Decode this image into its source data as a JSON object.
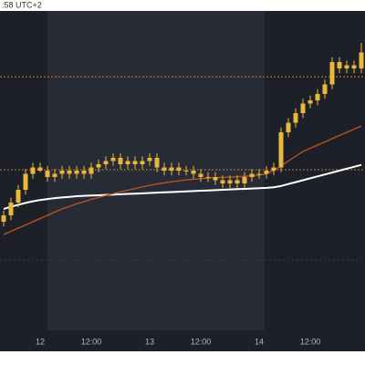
{
  "chart_data": {
    "type": "candlestick",
    "header": ":58 UTC+2",
    "categories": [
      null,
      null,
      null,
      null,
      null,
      "12",
      null,
      null,
      null,
      null,
      null,
      null,
      "12:00",
      null,
      null,
      null,
      null,
      null,
      null,
      null,
      "13",
      null,
      null,
      null,
      null,
      null,
      null,
      "12:00",
      null,
      null,
      null,
      null,
      null,
      null,
      null,
      "14",
      null,
      null,
      null,
      null,
      null,
      null,
      "12:00",
      null,
      null,
      null,
      null,
      null,
      null,
      null
    ],
    "open": [
      34,
      36,
      40,
      44,
      49,
      51,
      50,
      48,
      49,
      50,
      49,
      50,
      49,
      51,
      52,
      53,
      54,
      52,
      53,
      52,
      53,
      54,
      51,
      50,
      51,
      50,
      50,
      49,
      48,
      48,
      47,
      46,
      47,
      46,
      48,
      49,
      49,
      50,
      51,
      62,
      65,
      68,
      71,
      72,
      74,
      77,
      84,
      82,
      83,
      82
    ],
    "close": [
      36,
      40,
      44,
      49,
      51,
      50,
      48,
      49,
      50,
      49,
      50,
      49,
      51,
      52,
      53,
      54,
      52,
      53,
      52,
      53,
      54,
      51,
      50,
      51,
      50,
      50,
      49,
      48,
      48,
      47,
      46,
      47,
      46,
      48,
      49,
      49,
      50,
      51,
      62,
      65,
      68,
      71,
      72,
      74,
      77,
      84,
      82,
      83,
      82,
      87
    ],
    "high": [
      37.5,
      41.5,
      45.5,
      50.5,
      52.5,
      52.5,
      51.5,
      50.5,
      51.5,
      51.5,
      51.5,
      51.5,
      52.5,
      53.5,
      54.5,
      55.5,
      55.5,
      54.5,
      54.5,
      54.5,
      55.5,
      55.5,
      52.5,
      52.5,
      52.5,
      51.5,
      51.5,
      50.5,
      49.5,
      49.5,
      48.5,
      48.5,
      48.5,
      49.5,
      50.5,
      50.5,
      51.5,
      52.5,
      63.5,
      66.5,
      69.5,
      72.5,
      73.5,
      75.5,
      78.5,
      85.5,
      85.5,
      84.5,
      84.5,
      90
    ],
    "low": [
      32.5,
      34.5,
      38.5,
      42.5,
      47.5,
      49.5,
      46.5,
      46.5,
      47.5,
      47.5,
      47.5,
      47.5,
      47.5,
      49.5,
      50.5,
      51.5,
      50.5,
      50.5,
      50.5,
      50.5,
      51.5,
      49.5,
      48.5,
      48.5,
      48.5,
      48.5,
      47.5,
      46.5,
      46.5,
      45.5,
      44.5,
      44.5,
      44.5,
      44.5,
      46.5,
      47.5,
      47.5,
      48.5,
      49.5,
      60.5,
      63.5,
      66.5,
      69.5,
      70.5,
      72.5,
      75.5,
      80.5,
      80.5,
      80.5,
      80.5
    ],
    "candle_color": "#e9b73c",
    "series": [
      {
        "color": "#ffffff",
        "values": [
          38,
          38.7,
          39.3,
          39.9,
          40.4,
          40.8,
          41.1,
          41.4,
          41.6,
          41.8,
          42,
          42.1,
          42.2,
          42.3,
          42.4,
          42.5,
          42.6,
          42.7,
          42.8,
          42.9,
          43,
          43.1,
          43.2,
          43.3,
          43.4,
          43.5,
          43.6,
          43.7,
          43.8,
          43.9,
          44,
          44.1,
          44.2,
          44.3,
          44.4,
          44.5,
          44.6,
          44.8,
          45.2,
          45.8,
          46.4,
          47,
          47.6,
          48.2,
          48.8,
          49.4,
          50,
          50.6,
          51.2,
          51.8
        ]
      },
      {
        "color": "#c0531d",
        "values": [
          30,
          31,
          32,
          33,
          34,
          35,
          36,
          37,
          38,
          38.8,
          39.6,
          40.3,
          41,
          41.6,
          42.2,
          42.8,
          43.4,
          43.9,
          44.4,
          44.9,
          45.4,
          45.8,
          46.2,
          46.5,
          46.8,
          47.1,
          47.3,
          47.5,
          47.7,
          47.8,
          47.9,
          48,
          48.1,
          48.2,
          48.4,
          48.6,
          49,
          50,
          51.5,
          53,
          54.5,
          56,
          57,
          58,
          59,
          60,
          61,
          62,
          63,
          64
        ]
      }
    ],
    "price_lines": [
      79.4,
      50.3
    ],
    "price_line_color": "#c77a2a",
    "ylim": [
      0,
      100
    ]
  }
}
